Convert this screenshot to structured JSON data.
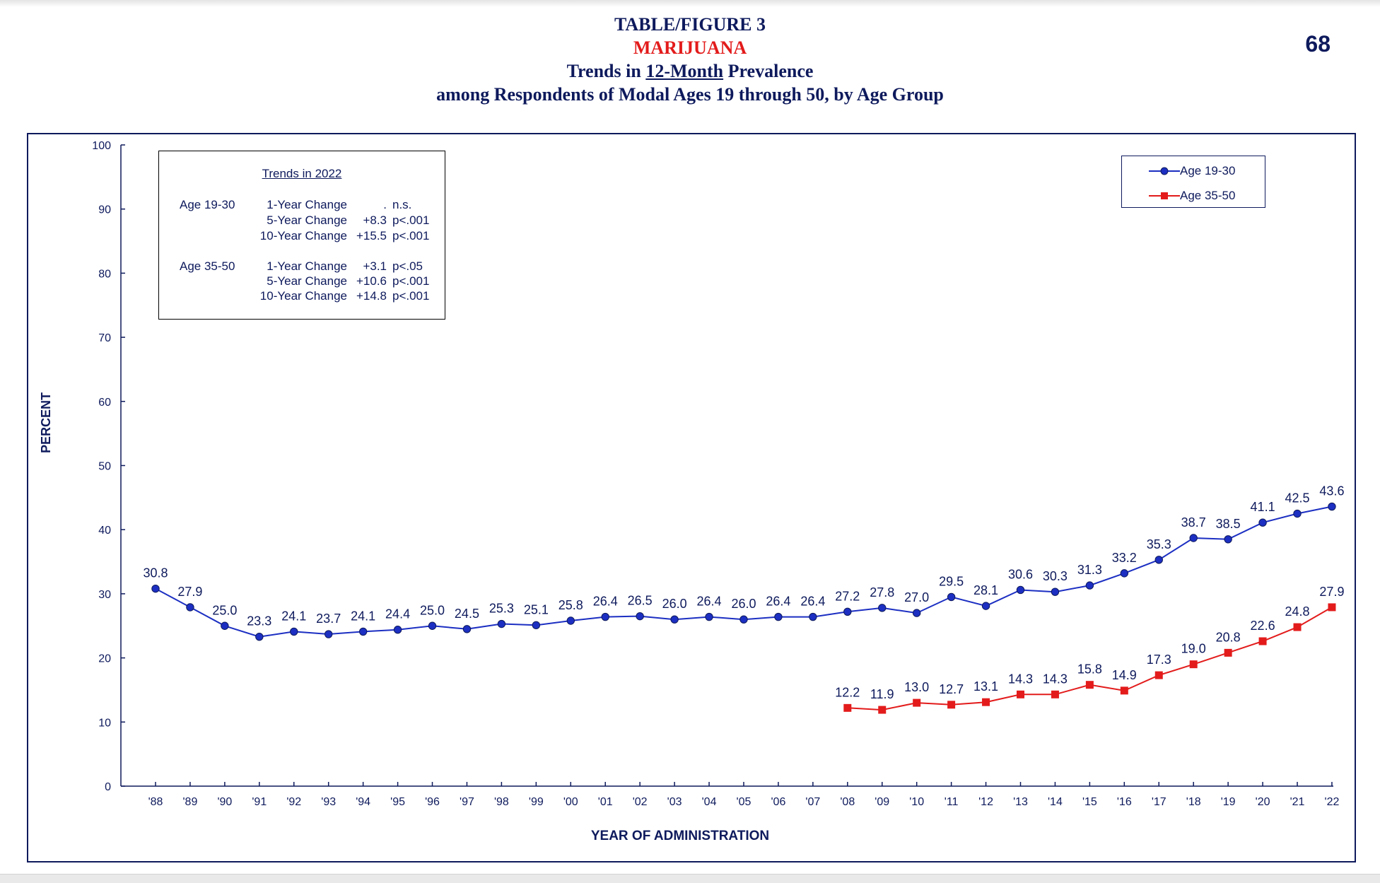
{
  "page": {
    "title_line1": "TABLE/FIGURE 3",
    "drug_name": "MARIJUANA",
    "subtitle_pre": "Trends in ",
    "subtitle_underlined": "12-Month",
    "subtitle_post": " Prevalence",
    "subtitle_line2": "among Respondents of Modal Ages 19 through 50, by Age Group",
    "page_number": "68"
  },
  "trend_box": {
    "title": "Trends in 2022",
    "groups": [
      {
        "age": "Age 19-30",
        "rows": [
          {
            "label": "1-Year Change",
            "value": ".",
            "sig": "n.s."
          },
          {
            "label": "5-Year Change",
            "value": "+8.3",
            "sig": "p<.001"
          },
          {
            "label": "10-Year Change",
            "value": "+15.5",
            "sig": "p<.001"
          }
        ]
      },
      {
        "age": "Age 35-50",
        "rows": [
          {
            "label": "1-Year Change",
            "value": "+3.1",
            "sig": "p<.05"
          },
          {
            "label": "5-Year Change",
            "value": "+10.6",
            "sig": "p<.001"
          },
          {
            "label": "10-Year Change",
            "value": "+14.8",
            "sig": "p<.001"
          }
        ]
      }
    ]
  },
  "colors": {
    "navy": "#0e1a5c",
    "blue_series": "#1c2fc2",
    "red_series": "#e31b1b"
  },
  "chart_data": {
    "type": "line",
    "xlabel": "YEAR OF ADMINISTRATION",
    "ylabel": "PERCENT",
    "ylim": [
      0,
      100
    ],
    "yticks": [
      0,
      10,
      20,
      30,
      40,
      50,
      60,
      70,
      80,
      90,
      100
    ],
    "x": [
      "'88",
      "'89",
      "'90",
      "'91",
      "'92",
      "'93",
      "'94",
      "'95",
      "'96",
      "'97",
      "'98",
      "'99",
      "'00",
      "'01",
      "'02",
      "'03",
      "'04",
      "'05",
      "'06",
      "'07",
      "'08",
      "'09",
      "'10",
      "'11",
      "'12",
      "'13",
      "'14",
      "'15",
      "'16",
      "'17",
      "'18",
      "'19",
      "'20",
      "'21",
      "'22"
    ],
    "legend_position": "top-right",
    "grid": false,
    "series": [
      {
        "name": "Age 19-30",
        "marker": "circle",
        "color": "#1c2fc2",
        "values": [
          30.8,
          27.9,
          25.0,
          23.3,
          24.1,
          23.7,
          24.1,
          24.4,
          25.0,
          24.5,
          25.3,
          25.1,
          25.8,
          26.4,
          26.5,
          26.0,
          26.4,
          26.0,
          26.4,
          26.4,
          27.2,
          27.8,
          27.0,
          29.5,
          28.1,
          30.6,
          30.3,
          31.3,
          33.2,
          35.3,
          38.7,
          38.5,
          41.1,
          42.5,
          43.6
        ],
        "labels": [
          "30.8",
          "27.9",
          "25.0",
          "23.3",
          "24.1",
          "23.7",
          "24.1",
          "24.4",
          "25.0",
          "24.5",
          "25.3",
          "25.1",
          "25.8",
          "26.4",
          "26.5",
          "26.0",
          "26.4",
          "26.0",
          "26.4",
          "26.4",
          "27.2",
          "27.8",
          "27.0",
          "29.5",
          "28.1",
          "30.6",
          "30.3",
          "31.3",
          "33.2",
          "35.3",
          "38.7",
          "38.5",
          "41.1",
          "42.5",
          "43.6"
        ]
      },
      {
        "name": "Age 35-50",
        "marker": "square",
        "color": "#e31b1b",
        "values": [
          null,
          null,
          null,
          null,
          null,
          null,
          null,
          null,
          null,
          null,
          null,
          null,
          null,
          null,
          null,
          null,
          null,
          null,
          null,
          null,
          12.2,
          11.9,
          13.0,
          12.7,
          13.1,
          14.3,
          14.3,
          15.8,
          14.9,
          17.3,
          19.0,
          20.8,
          22.6,
          24.8,
          27.9
        ],
        "labels": [
          null,
          null,
          null,
          null,
          null,
          null,
          null,
          null,
          null,
          null,
          null,
          null,
          null,
          null,
          null,
          null,
          null,
          null,
          null,
          null,
          "12.2",
          "11.9",
          "13.0",
          "12.7",
          "13.1",
          "14.3",
          "14.3",
          "15.8",
          "14.9",
          "17.3",
          "19.0",
          "20.8",
          "22.6",
          "24.8",
          "27.9"
        ]
      }
    ]
  }
}
